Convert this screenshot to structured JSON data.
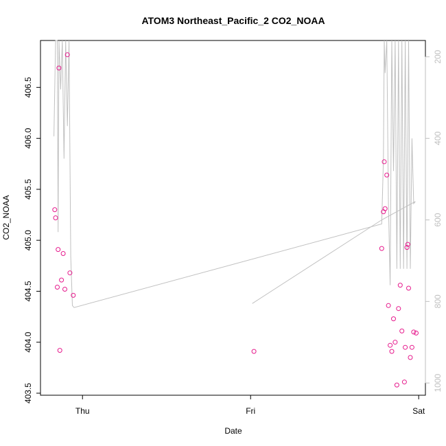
{
  "chart_data": {
    "type": "scatter",
    "title": "ATOM3 Northeast_Pacific_2 CO2_NOAA",
    "xlabel": "Date",
    "ylabel": "CO2_NOAA",
    "x_ticks": [
      "Thu",
      "Fri",
      "Sat"
    ],
    "x_range_days": [
      -0.25,
      2.04
    ],
    "ylim": [
      403.48,
      406.96
    ],
    "y_ticks": [
      "403.5",
      "404.0",
      "404.5",
      "405.0",
      "405.5",
      "406.0",
      "406.5"
    ],
    "y2_ticks": [
      "200",
      "400",
      "600",
      "800",
      "1000"
    ],
    "y2_range": [
      160,
      1030
    ],
    "y2_reversed": true,
    "point_color": "#e6198c",
    "line_color": "#c0c0c0",
    "points": [
      {
        "x": -0.165,
        "y": 405.3
      },
      {
        "x": -0.16,
        "y": 405.22
      },
      {
        "x": -0.15,
        "y": 404.54
      },
      {
        "x": -0.145,
        "y": 404.91
      },
      {
        "x": -0.14,
        "y": 406.69
      },
      {
        "x": -0.135,
        "y": 403.92
      },
      {
        "x": -0.125,
        "y": 404.61
      },
      {
        "x": -0.115,
        "y": 404.87
      },
      {
        "x": -0.105,
        "y": 404.52
      },
      {
        "x": -0.09,
        "y": 406.82
      },
      {
        "x": -0.075,
        "y": 404.68
      },
      {
        "x": -0.055,
        "y": 404.46
      },
      {
        "x": 1.02,
        "y": 403.91
      },
      {
        "x": 1.78,
        "y": 404.92
      },
      {
        "x": 1.79,
        "y": 405.28
      },
      {
        "x": 1.795,
        "y": 405.77
      },
      {
        "x": 1.8,
        "y": 405.31
      },
      {
        "x": 1.81,
        "y": 405.64
      },
      {
        "x": 1.82,
        "y": 404.36
      },
      {
        "x": 1.83,
        "y": 403.97
      },
      {
        "x": 1.84,
        "y": 403.91
      },
      {
        "x": 1.85,
        "y": 404.23
      },
      {
        "x": 1.86,
        "y": 404.0
      },
      {
        "x": 1.87,
        "y": 403.58
      },
      {
        "x": 1.88,
        "y": 404.33
      },
      {
        "x": 1.89,
        "y": 404.56
      },
      {
        "x": 1.9,
        "y": 404.11
      },
      {
        "x": 1.915,
        "y": 403.61
      },
      {
        "x": 1.92,
        "y": 403.95
      },
      {
        "x": 1.93,
        "y": 404.93
      },
      {
        "x": 1.935,
        "y": 404.96
      },
      {
        "x": 1.94,
        "y": 404.53
      },
      {
        "x": 1.95,
        "y": 403.85
      },
      {
        "x": 1.96,
        "y": 403.95
      },
      {
        "x": 1.97,
        "y": 404.1
      },
      {
        "x": 1.985,
        "y": 404.09
      }
    ],
    "altitude_line": [
      [
        -0.17,
        395
      ],
      [
        -0.16,
        160
      ],
      [
        -0.15,
        160
      ],
      [
        -0.145,
        630
      ],
      [
        -0.14,
        160
      ],
      [
        -0.13,
        280
      ],
      [
        -0.12,
        160
      ],
      [
        -0.11,
        450
      ],
      [
        -0.1,
        160
      ],
      [
        -0.09,
        370
      ],
      [
        -0.08,
        160
      ],
      [
        -0.07,
        690
      ],
      [
        -0.06,
        810
      ],
      [
        -0.05,
        815
      ],
      [
        1.78,
        610
      ],
      [
        1.79,
        450
      ],
      [
        1.795,
        160
      ],
      [
        1.8,
        240
      ],
      [
        1.81,
        160
      ],
      [
        1.82,
        560
      ],
      [
        1.83,
        760
      ],
      [
        1.84,
        160
      ],
      [
        1.85,
        480
      ],
      [
        1.86,
        160
      ],
      [
        1.87,
        720
      ],
      [
        1.88,
        160
      ],
      [
        1.89,
        720
      ],
      [
        1.9,
        160
      ],
      [
        1.91,
        720
      ],
      [
        1.92,
        160
      ],
      [
        1.93,
        720
      ],
      [
        1.94,
        160
      ],
      [
        1.95,
        720
      ],
      [
        1.96,
        400
      ],
      [
        1.97,
        560
      ],
      [
        1.98,
        555
      ]
    ],
    "altitude_line_2": [
      [
        1.01,
        805
      ],
      [
        1.78,
        600
      ],
      [
        1.98,
        555
      ]
    ]
  }
}
